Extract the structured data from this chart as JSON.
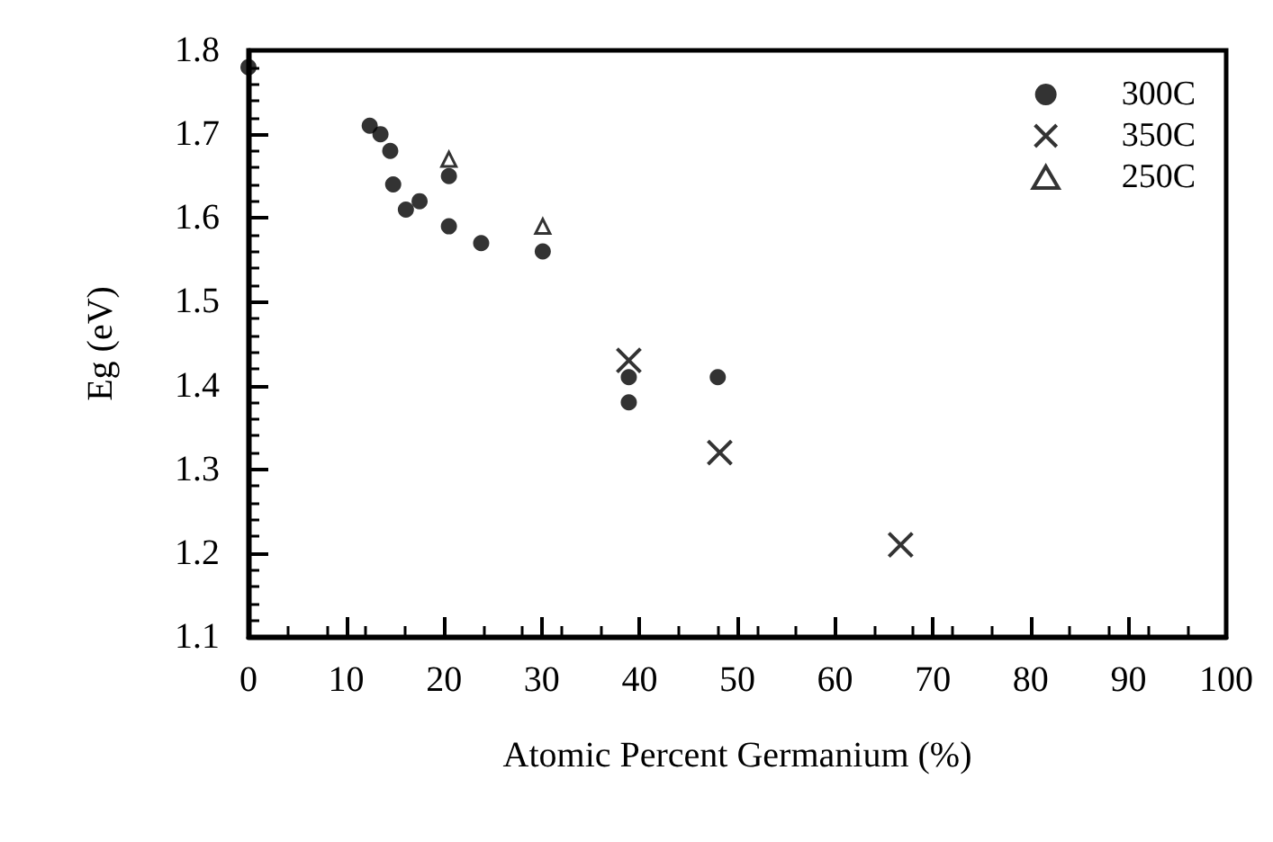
{
  "chart_data": {
    "type": "scatter",
    "xlabel": "Atomic Percent Germanium (%)",
    "ylabel": "Eg (eV)",
    "xlim": [
      0,
      100
    ],
    "xticks": [
      0,
      10,
      20,
      30,
      40,
      50,
      60,
      70,
      80,
      90,
      100
    ],
    "ylim": [
      1.1,
      1.8
    ],
    "yticks": [
      1.1,
      1.2,
      1.3,
      1.4,
      1.5,
      1.6,
      1.7,
      1.8
    ],
    "grid": false,
    "legend": "top right",
    "series": [
      {
        "name": "300C",
        "color": "#000000",
        "marker": "circle",
        "x": [
          0,
          12.4,
          13.5,
          14.5,
          14.8,
          16.1,
          17.5,
          20.5,
          20.5,
          23.8,
          30.1,
          38.9,
          38.9,
          48.0
        ],
        "values": [
          1.78,
          1.71,
          1.7,
          1.68,
          1.64,
          1.61,
          1.62,
          1.65,
          1.59,
          1.57,
          1.56,
          1.41,
          1.38,
          1.41
        ]
      },
      {
        "name": "350C",
        "color": "#000000",
        "marker": "cross",
        "x": [
          38.9,
          48.2,
          66.7
        ],
        "values": [
          1.43,
          1.32,
          1.21
        ]
      },
      {
        "name": "250C",
        "color": "#000000",
        "marker": "triangle",
        "x": [
          20.5,
          30.1
        ],
        "values": [
          1.67,
          1.59
        ]
      }
    ]
  }
}
